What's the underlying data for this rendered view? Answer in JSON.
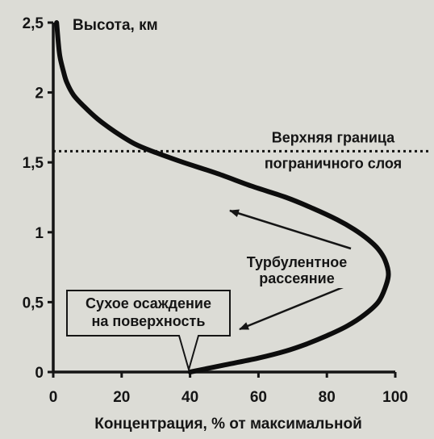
{
  "chart_data": {
    "type": "line",
    "title": "",
    "ylabel": "Высота, км",
    "xlabel": "Концентрация, % от максимальной",
    "xlim": [
      0,
      100
    ],
    "ylim": [
      0,
      2.5
    ],
    "x_ticks": [
      {
        "value": 0,
        "label": "0"
      },
      {
        "value": 20,
        "label": "20"
      },
      {
        "value": 40,
        "label": "40"
      },
      {
        "value": 60,
        "label": "60"
      },
      {
        "value": 80,
        "label": "80"
      },
      {
        "value": 100,
        "label": "100"
      }
    ],
    "y_ticks": [
      {
        "value": 0,
        "label": "0"
      },
      {
        "value": 0.5,
        "label": "0,5"
      },
      {
        "value": 1,
        "label": "1"
      },
      {
        "value": 1.5,
        "label": "1,5"
      },
      {
        "value": 2,
        "label": "2"
      },
      {
        "value": 2.5,
        "label": "2,5"
      }
    ],
    "grid": false,
    "series": [
      {
        "x": [
          40,
          50,
          60,
          68,
          74,
          80,
          86,
          91,
          95,
          97,
          98,
          97,
          95,
          92,
          88,
          83,
          76,
          68,
          58,
          48,
          38,
          30,
          24,
          18,
          13,
          9,
          6,
          4,
          3,
          2,
          1.5,
          1
        ],
        "y": [
          0,
          0.05,
          0.1,
          0.15,
          0.2,
          0.26,
          0.33,
          0.41,
          0.5,
          0.6,
          0.7,
          0.8,
          0.88,
          0.95,
          1.02,
          1.09,
          1.17,
          1.25,
          1.33,
          1.42,
          1.5,
          1.57,
          1.63,
          1.72,
          1.81,
          1.9,
          1.98,
          2.07,
          2.15,
          2.25,
          2.35,
          2.5
        ]
      }
    ],
    "reference_lines": [
      {
        "axis": "y",
        "value": 1.58,
        "style": "dotted",
        "label": [
          "Верхняя граница",
          "пограничного слоя"
        ]
      }
    ],
    "annotations": {
      "turbulent": {
        "lines": [
          "Турбулентное",
          "рассеяние"
        ]
      },
      "deposition": {
        "lines": [
          "Сухое осаждение",
          "на поверхность"
        ]
      }
    }
  }
}
